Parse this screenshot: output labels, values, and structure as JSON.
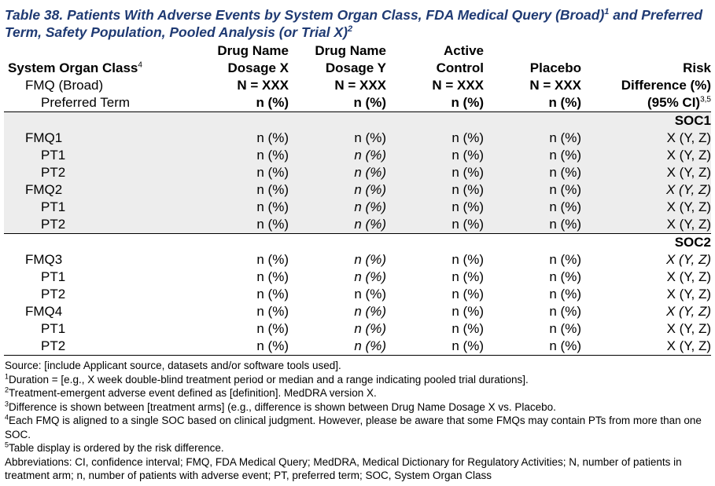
{
  "caption": {
    "text": "Table 38. Patients With Adverse Events by System Organ Class, FDA Medical Query (Broad)",
    "sup1": "1",
    "text2": " and Preferred Term, Safety Population, Pooled Analysis (or Trial X)",
    "sup2": "2"
  },
  "header": {
    "soc": "System Organ Class",
    "soc_sup": "4",
    "fmq": "FMQ (Broad)",
    "pt": "Preferred Term",
    "columns": [
      {
        "l1": "Drug Name",
        "l2": "Dosage X",
        "l3": "N = XXX",
        "l4": "n (%)"
      },
      {
        "l1": "Drug Name",
        "l2": "Dosage Y",
        "l3": "N = XXX",
        "l4": "n (%)"
      },
      {
        "l1": "Active",
        "l2": "Control",
        "l3": "N = XXX",
        "l4": "n (%)"
      },
      {
        "l1": "",
        "l2": "Placebo",
        "l3": "N = XXX",
        "l4": "n (%)"
      },
      {
        "l1": "",
        "l2": "Risk",
        "l3": "Difference (%)",
        "l4": "(95% CI)",
        "l4_sup": "3,5"
      }
    ]
  },
  "groups": [
    {
      "soc": "SOC1",
      "rows": [
        {
          "label": "FMQ1",
          "level": "fmq",
          "cells": [
            "n (%)",
            "n (%)",
            "n (%)",
            "n (%)",
            "X (Y, Z)"
          ]
        },
        {
          "label": "PT1",
          "level": "pt",
          "cells": [
            "n (%)",
            "n (%)",
            "n (%)",
            "n (%)",
            "X (Y, Z)"
          ]
        },
        {
          "label": "PT2",
          "level": "pt",
          "cells": [
            "n (%)",
            "n (%)",
            "n (%)",
            "n (%)",
            "X (Y, Z)"
          ]
        },
        {
          "label": "FMQ2",
          "level": "fmq",
          "cells": [
            "n (%)",
            "n (%)",
            "n (%)",
            "n (%)",
            "X (Y, Z)"
          ]
        },
        {
          "label": "PT1",
          "level": "pt",
          "cells": [
            "n (%)",
            "n (%)",
            "n (%)",
            "n (%)",
            "X (Y, Z)"
          ]
        },
        {
          "label": "PT2",
          "level": "pt",
          "cells": [
            "n (%)",
            "n (%)",
            "n (%)",
            "n (%)",
            "X (Y, Z)"
          ]
        }
      ]
    },
    {
      "soc": "SOC2",
      "rows": [
        {
          "label": "FMQ3",
          "level": "fmq",
          "cells": [
            "n (%)",
            "n (%)",
            "n (%)",
            "n (%)",
            "X (Y, Z)"
          ]
        },
        {
          "label": "PT1",
          "level": "pt",
          "cells": [
            "n (%)",
            "n (%)",
            "n (%)",
            "n (%)",
            "X (Y, Z)"
          ]
        },
        {
          "label": "PT2",
          "level": "pt",
          "cells": [
            "n (%)",
            "n (%)",
            "n (%)",
            "n (%)",
            "X (Y, Z)"
          ]
        },
        {
          "label": "FMQ4",
          "level": "fmq",
          "cells": [
            "n (%)",
            "n (%)",
            "n (%)",
            "n (%)",
            "X (Y, Z)"
          ]
        },
        {
          "label": "PT1",
          "level": "pt",
          "cells": [
            "n (%)",
            "n (%)",
            "n (%)",
            "n (%)",
            "X (Y, Z)"
          ]
        },
        {
          "label": "PT2",
          "level": "pt",
          "cells": [
            "n (%)",
            "n (%)",
            "n (%)",
            "n (%)",
            "X (Y, Z)"
          ]
        }
      ]
    }
  ],
  "notes": {
    "source": "Source: [include Applicant source, datasets and/or software tools used].",
    "fn1_num": "1",
    "fn1": "Duration = [e.g., X week double-blind treatment period or median and a range indicating pooled trial durations].",
    "fn2_num": "2",
    "fn2": "Treatment-emergent adverse event defined as [definition]. MedDRA version X.",
    "fn3_num": "3",
    "fn3": "Difference is shown between [treatment arms] (e.g., difference is shown between Drug Name Dosage X vs. Placebo.",
    "fn4_num": "4",
    "fn4": "Each FMQ is aligned to a single SOC based on clinical judgment. However, please be aware that some FMQs may contain PTs from more than one SOC.",
    "fn5_num": "5",
    "fn5": "Table display is ordered by the risk difference.",
    "abbrev": "Abbreviations: CI, confidence interval; FMQ, FDA Medical Query; MedDRA, Medical Dictionary for Regulatory Activities; N, number of patients in treatment arm; n, number of patients with adverse event; PT, preferred term; SOC, System Organ Class"
  }
}
